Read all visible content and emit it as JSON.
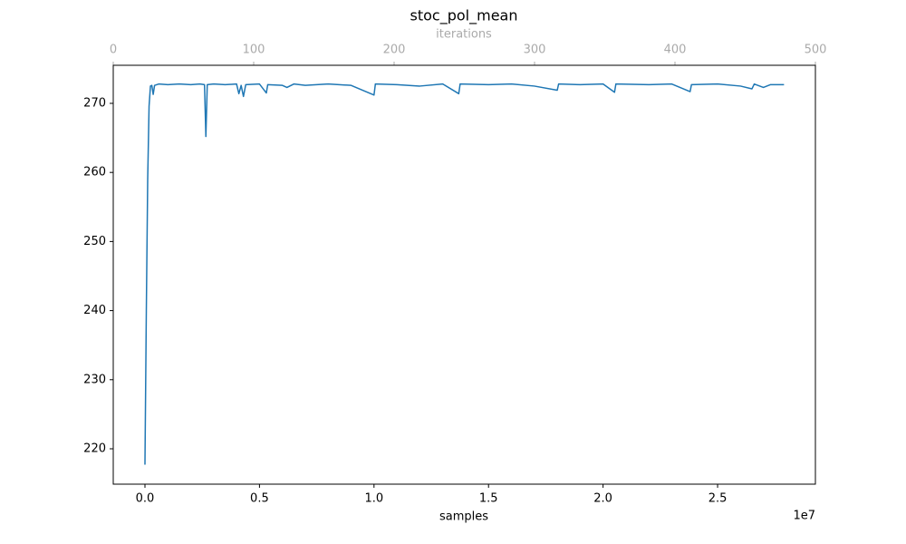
{
  "chart_data": {
    "type": "line",
    "title": "stoc_pol_mean",
    "x_label": "samples",
    "x_offset_label": "1e7",
    "x2_label": "iterations",
    "xlim": [
      -1384000,
      29270000
    ],
    "xticks": [
      {
        "value": 0,
        "label": "0.0"
      },
      {
        "value": 5000000,
        "label": "0.5"
      },
      {
        "value": 10000000,
        "label": "1.0"
      },
      {
        "value": 15000000,
        "label": "1.5"
      },
      {
        "value": 20000000,
        "label": "2.0"
      },
      {
        "value": 25000000,
        "label": "2.5"
      }
    ],
    "x2lim": [
      0,
      500
    ],
    "x2ticks": [
      0,
      100,
      200,
      300,
      400,
      500
    ],
    "ylim": [
      214.88,
      275.51
    ],
    "yticks": [
      220,
      230,
      240,
      250,
      260,
      270
    ],
    "grid": false,
    "x": [
      0,
      60000,
      120000,
      180000,
      240000,
      300000,
      360000,
      420000,
      600000,
      1000000,
      1500000,
      2000000,
      2400000,
      2600000,
      2660000,
      2720000,
      3000000,
      3500000,
      4000000,
      4100000,
      4200000,
      4300000,
      4400000,
      5000000,
      5300000,
      5360000,
      6000000,
      6200000,
      6500000,
      7000000,
      8000000,
      9000000,
      10000000,
      10060000,
      11000000,
      12000000,
      13000000,
      13700000,
      13760000,
      15000000,
      16000000,
      17000000,
      18000000,
      18060000,
      19000000,
      20000000,
      20500000,
      20560000,
      22000000,
      23000000,
      23800000,
      23860000,
      25000000,
      26000000,
      26500000,
      26600000,
      27000000,
      27300000,
      27900000
    ],
    "series": [
      {
        "name": "stoc_pol_mean",
        "color": "#1f77b4",
        "values": [
          217.7,
          240,
          259,
          269.6,
          272.5,
          272.6,
          271.3,
          272.6,
          272.8,
          272.7,
          272.8,
          272.7,
          272.8,
          272.7,
          265.2,
          272.7,
          272.8,
          272.7,
          272.8,
          271.4,
          272.6,
          271.0,
          272.7,
          272.8,
          271.5,
          272.7,
          272.6,
          272.3,
          272.8,
          272.6,
          272.8,
          272.6,
          271.2,
          272.8,
          272.7,
          272.5,
          272.8,
          271.4,
          272.8,
          272.7,
          272.8,
          272.5,
          271.9,
          272.8,
          272.7,
          272.8,
          271.6,
          272.8,
          272.7,
          272.8,
          271.7,
          272.7,
          272.8,
          272.5,
          272.1,
          272.8,
          272.3,
          272.7,
          272.7
        ]
      }
    ]
  }
}
